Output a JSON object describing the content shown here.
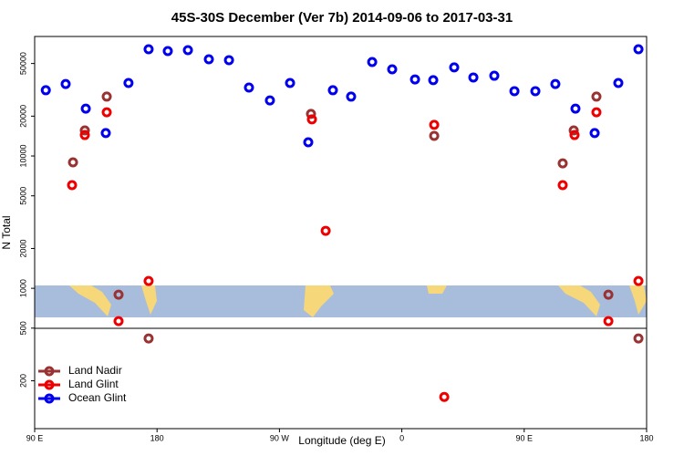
{
  "chart_data": {
    "type": "scatter",
    "title": "45S-30S December (Ver 7b)   2014-09-06 to 2017-03-31",
    "x_label": "Longitude (deg E)",
    "y_label": "N Total",
    "ylog": true,
    "legend": "bottom-left",
    "xlim": [
      90,
      540
    ],
    "ylim": [
      87,
      80000
    ],
    "xticks": [
      {
        "value": 90,
        "label": "90 E"
      },
      180,
      {
        "value": 270,
        "label": "90 W"
      },
      {
        "value": 360,
        "label": "0"
      },
      {
        "value": 450,
        "label": "90 E"
      },
      {
        "value": 540,
        "label": "180"
      }
    ],
    "yticks": [
      200,
      500,
      1000,
      2000,
      5000,
      10000,
      20000,
      50000
    ],
    "series": [
      {
        "name": "Land Nadir",
        "color": "#993333",
        "x": [
          118.2,
          126.9,
          143,
          151.7,
          173.8,
          293.2,
          383.8,
          478.3,
          486.4,
          503.1,
          511.9,
          534
        ],
        "values": [
          8950,
          15600,
          28100,
          895,
          418,
          20800,
          14200,
          8800,
          15600,
          28100,
          895,
          418
        ]
      },
      {
        "name": "Land Glint",
        "color": "#ee0000",
        "x": [
          117.5,
          126.9,
          143,
          151.7,
          173.8,
          293.9,
          304,
          383.8,
          391.2,
          478.3,
          487,
          503.1,
          511.9,
          534
        ],
        "values": [
          6020,
          14400,
          21400,
          565,
          1135,
          18900,
          2720,
          17200,
          151,
          6020,
          14400,
          21400,
          565,
          1135
        ]
      },
      {
        "name": "Ocean Glint",
        "color": "#0000ee",
        "x": [
          98.2,
          112.8,
          127.6,
          142.3,
          159,
          173.8,
          187.9,
          202.7,
          218.1,
          232.9,
          247.6,
          263,
          277.8,
          291.2,
          309.3,
          322.7,
          338.2,
          352.9,
          369.7,
          383.1,
          398.5,
          412.6,
          428,
          442.8,
          458.2,
          472.9,
          487.7,
          501.8,
          519.2,
          534
        ],
        "values": [
          31400,
          35000,
          22800,
          14900,
          35600,
          64100,
          62100,
          63100,
          53800,
          53000,
          32900,
          26300,
          35600,
          12700,
          31400,
          28100,
          51300,
          45200,
          37900,
          37400,
          46700,
          39200,
          40400,
          30900,
          30900,
          35000,
          22800,
          14900,
          35600,
          64100
        ]
      }
    ]
  }
}
